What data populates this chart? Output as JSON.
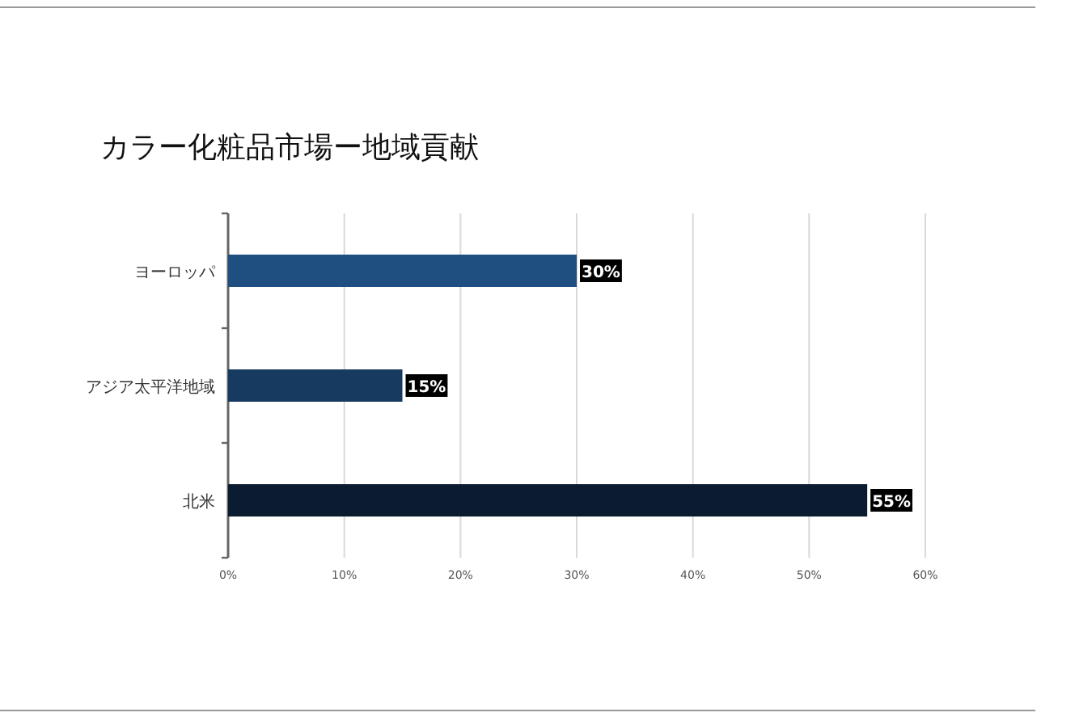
{
  "chart_data": {
    "type": "bar",
    "orientation": "horizontal",
    "title": "カラー化粧品市場ー地域貢献",
    "categories": [
      "ヨーロッパ",
      "アジア太平洋地域",
      "北米"
    ],
    "values": [
      30,
      15,
      55
    ],
    "colors": [
      "#1f4e80",
      "#173a60",
      "#0c1c30"
    ],
    "xlim": [
      0,
      60
    ],
    "xticks": [
      {
        "value": 0,
        "label": "0%"
      },
      {
        "value": 10,
        "label": "10%"
      },
      {
        "value": 20,
        "label": "20%"
      },
      {
        "value": 30,
        "label": "30%"
      },
      {
        "value": 40,
        "label": "40%"
      },
      {
        "value": 50,
        "label": "50%"
      },
      {
        "value": 60,
        "label": "60%"
      }
    ],
    "value_labels": [
      "30%",
      "15%",
      "55%"
    ],
    "grid": "x"
  }
}
